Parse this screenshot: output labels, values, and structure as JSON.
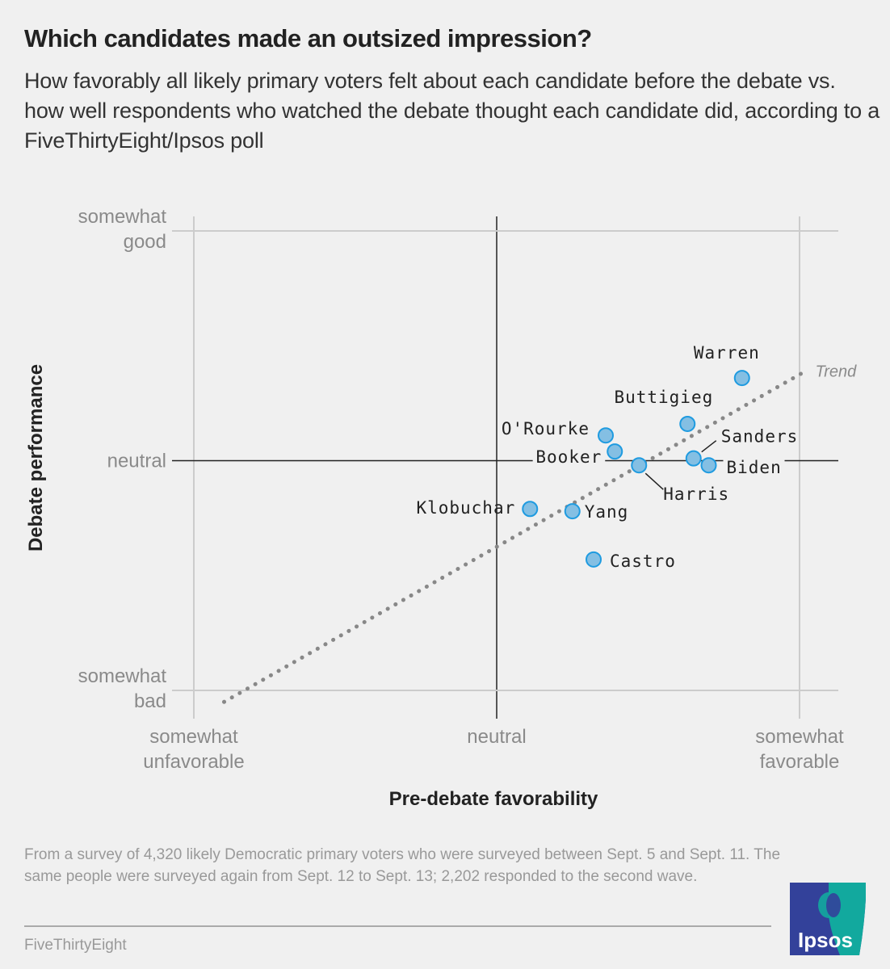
{
  "header": {
    "title": "Which candidates made an outsized impression?",
    "subtitle": "How favorably all likely primary voters felt about each candidate before the debate vs. how well respondents who watched the debate thought each candidate did, according to a FiveThirtyEight/Ipsos poll"
  },
  "chart_data": {
    "type": "scatter",
    "title": "Which candidates made an outsized impression?",
    "xlabel": "Pre-debate favorability",
    "ylabel": "Debate performance",
    "xlim": [
      -1,
      1
    ],
    "ylim": [
      -1,
      1
    ],
    "x_ticks": [
      {
        "value": -1,
        "label": [
          "somewhat",
          "unfavorable"
        ]
      },
      {
        "value": 0,
        "label": [
          "neutral"
        ]
      },
      {
        "value": 1,
        "label": [
          "somewhat",
          "favorable"
        ]
      }
    ],
    "y_ticks": [
      {
        "value": 1,
        "label": [
          "somewhat",
          "good"
        ]
      },
      {
        "value": 0,
        "label": [
          "neutral"
        ]
      },
      {
        "value": -1,
        "label": [
          "somewhat",
          "bad"
        ]
      }
    ],
    "grid": true,
    "points": [
      {
        "name": "Warren",
        "x": 0.81,
        "y": 0.36
      },
      {
        "name": "Buttigieg",
        "x": 0.63,
        "y": 0.16
      },
      {
        "name": "O'Rourke",
        "x": 0.36,
        "y": 0.11
      },
      {
        "name": "Booker",
        "x": 0.39,
        "y": 0.04
      },
      {
        "name": "Harris",
        "x": 0.47,
        "y": -0.02
      },
      {
        "name": "Sanders",
        "x": 0.65,
        "y": 0.01
      },
      {
        "name": "Biden",
        "x": 0.7,
        "y": -0.02
      },
      {
        "name": "Klobuchar",
        "x": 0.11,
        "y": -0.21
      },
      {
        "name": "Yang",
        "x": 0.25,
        "y": -0.22
      },
      {
        "name": "Castro",
        "x": 0.32,
        "y": -0.43
      }
    ],
    "trend": {
      "label": "Trend",
      "start": {
        "x": -0.9,
        "y": -1.05
      },
      "end": {
        "x": 1.02,
        "y": 0.39
      }
    },
    "colors": {
      "point_fill": "#84bfe3",
      "point_stroke": "#1f9be0",
      "trend": "#888888"
    }
  },
  "footer": {
    "note": "From a survey of 4,320 likely Democratic primary voters who were surveyed between Sept. 5 and Sept. 11. The same people were surveyed again from Sept. 12 to Sept. 13; 2,202 responded to the second wave.",
    "source": "FiveThirtyEight",
    "logo_text": "Ipsos"
  }
}
